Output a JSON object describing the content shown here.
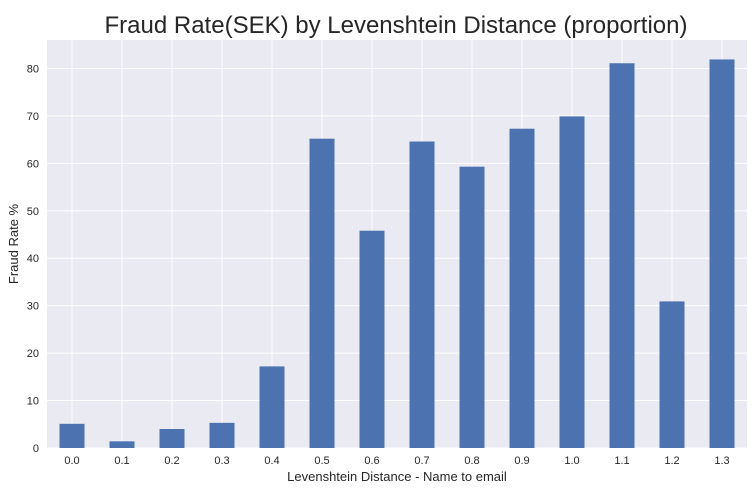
{
  "chart_data": {
    "type": "bar",
    "title": "Fraud Rate(SEK) by Levenshtein Distance (proportion)",
    "xlabel": "Levenshtein Distance - Name to email",
    "ylabel": "Fraud Rate %",
    "categories": [
      "0.0",
      "0.1",
      "0.2",
      "0.3",
      "0.4",
      "0.5",
      "0.6",
      "0.7",
      "0.8",
      "0.9",
      "1.0",
      "1.1",
      "1.2",
      "1.3"
    ],
    "values": [
      5.1,
      1.4,
      4.0,
      5.3,
      17.2,
      65.2,
      45.8,
      64.6,
      59.3,
      67.3,
      69.9,
      81.1,
      30.9,
      81.9
    ],
    "yticks": [
      0,
      10,
      20,
      30,
      40,
      50,
      60,
      70,
      80
    ],
    "ylim": [
      0,
      86
    ],
    "grid": true,
    "legend": "none",
    "colors": {
      "bar": "#4c72b0",
      "plot_background": "#eaeaf2",
      "grid": "#ffffff",
      "text": "#262626"
    }
  }
}
